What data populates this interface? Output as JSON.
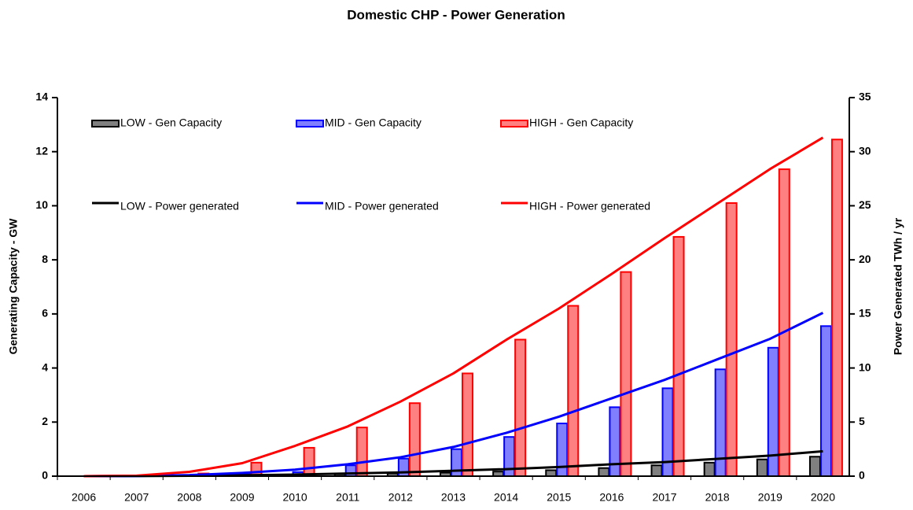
{
  "chart_data": {
    "type": "bar",
    "title": "Domestic CHP - Power Generation",
    "ylabel": "Generating Capacity - GW",
    "y2label": "Power Generated TWh / yr",
    "categories": [
      "2006",
      "2007",
      "2008",
      "2009",
      "2010",
      "2011",
      "2012",
      "2013",
      "2014",
      "2015",
      "2016",
      "2017",
      "2018",
      "2019",
      "2020"
    ],
    "ylim": [
      0,
      14
    ],
    "yticks": [
      0,
      2,
      4,
      6,
      8,
      10,
      12,
      14
    ],
    "y2lim": [
      0,
      35
    ],
    "y2ticks": [
      0,
      5,
      10,
      15,
      20,
      25,
      30,
      35
    ],
    "series": [
      {
        "name": "LOW - Gen Capacity",
        "type": "bar",
        "color": "#808080",
        "edge": "#000000",
        "values": [
          0,
          0,
          0.01,
          0.02,
          0.04,
          0.07,
          0.1,
          0.13,
          0.17,
          0.22,
          0.3,
          0.4,
          0.5,
          0.62,
          0.72
        ]
      },
      {
        "name": "MID - Gen Capacity",
        "type": "bar",
        "color": "#8080ff",
        "edge": "#0000ff",
        "values": [
          0,
          0.01,
          0.03,
          0.07,
          0.15,
          0.4,
          0.65,
          1.0,
          1.45,
          1.95,
          2.55,
          3.25,
          3.95,
          4.75,
          5.55
        ]
      },
      {
        "name": "HIGH - Gen Capacity",
        "type": "bar",
        "color": "#ff8080",
        "edge": "#ff0000",
        "values": [
          0,
          0.02,
          0.1,
          0.5,
          1.05,
          1.8,
          2.7,
          3.8,
          5.05,
          6.3,
          7.55,
          8.85,
          10.1,
          11.35,
          12.45
        ]
      },
      {
        "name": "LOW - Power generated",
        "type": "line",
        "axis": "y2",
        "color": "#000000",
        "values": [
          0,
          0.01,
          0.04,
          0.08,
          0.15,
          0.25,
          0.35,
          0.5,
          0.65,
          0.85,
          1.1,
          1.3,
          1.6,
          1.9,
          2.3
        ]
      },
      {
        "name": "MID - Power generated",
        "type": "line",
        "axis": "y2",
        "color": "#0000ff",
        "values": [
          0,
          0.02,
          0.1,
          0.3,
          0.6,
          1.1,
          1.75,
          2.7,
          4.0,
          5.5,
          7.2,
          8.9,
          10.8,
          12.7,
          15.1
        ]
      },
      {
        "name": "HIGH - Power generated",
        "type": "line",
        "axis": "y2",
        "color": "#ff0000",
        "values": [
          0,
          0.05,
          0.4,
          1.2,
          2.8,
          4.6,
          6.9,
          9.5,
          12.6,
          15.5,
          18.7,
          22.0,
          25.2,
          28.4,
          31.3
        ]
      }
    ]
  }
}
